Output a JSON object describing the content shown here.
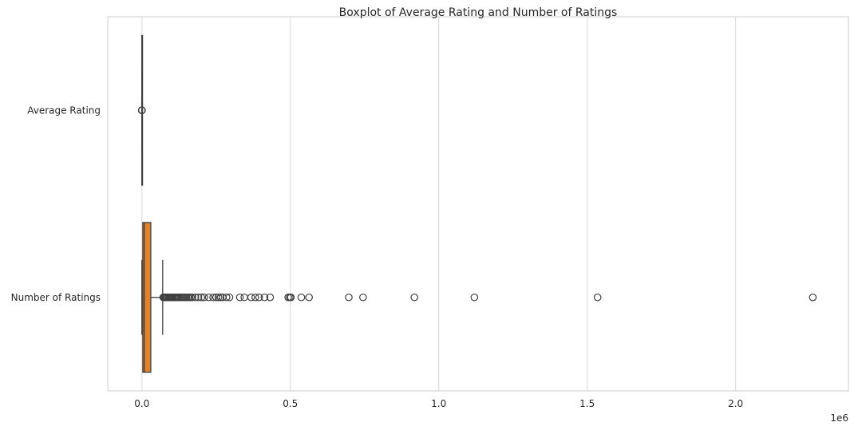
{
  "chart_data": {
    "type": "boxplot",
    "orientation": "horizontal",
    "title": "Boxplot of Average Rating and Number of Ratings",
    "xlabel": "",
    "ylabel": "",
    "offset_text": "1e6",
    "xlim": [
      -115000,
      2380000
    ],
    "xticks": [
      0,
      500000,
      1000000,
      1500000,
      2000000
    ],
    "xtick_labels": [
      "0.0",
      "0.5",
      "1.0",
      "1.5",
      "2.0"
    ],
    "grid": "vertical",
    "categories": [
      "Average Rating",
      "Number of Ratings"
    ],
    "series": [
      {
        "label": "Average Rating",
        "color": "#3a75af",
        "q1": 3.5,
        "median": 3.9,
        "q3": 4.2,
        "whisker_low": 0,
        "whisker_high": 5,
        "outliers": [
          0,
          0.5,
          1,
          1.5,
          2
        ]
      },
      {
        "label": "Number of Ratings",
        "color": "#e1812c",
        "q1": 3000,
        "median": 8000,
        "q3": 30000,
        "whisker_low": 0,
        "whisker_high": 70000,
        "outliers": [
          72000,
          75000,
          78000,
          80000,
          83000,
          86000,
          90000,
          93000,
          96000,
          100000,
          104000,
          108000,
          112000,
          116000,
          120000,
          125000,
          130000,
          135000,
          140000,
          145000,
          150000,
          155000,
          160000,
          165000,
          170000,
          180000,
          190000,
          200000,
          210000,
          225000,
          240000,
          250000,
          258000,
          265000,
          272000,
          285000,
          295000,
          330000,
          345000,
          368000,
          382000,
          395000,
          413000,
          432000,
          493000,
          498000,
          502000,
          537000,
          563000,
          697000,
          745000,
          918000,
          1120000,
          1535000,
          2260000
        ]
      }
    ]
  }
}
